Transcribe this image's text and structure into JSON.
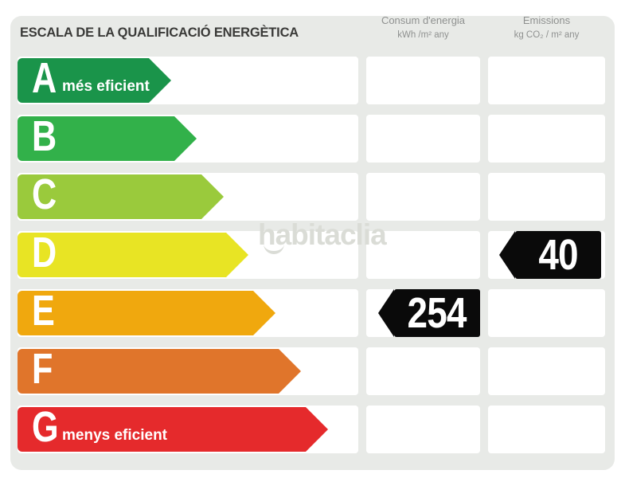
{
  "title": "ESCALA DE LA QUALIFICACIÓ ENERGÈTICA",
  "columns": {
    "consumption": {
      "title": "Consum d'energia",
      "unit": "kWh /m² any"
    },
    "emissions": {
      "title": "Emissions",
      "unit": "kg CO₂ / m² any"
    }
  },
  "scale": {
    "rows": [
      {
        "letter": "A",
        "label": "més eficient",
        "color": "#1a944a"
      },
      {
        "letter": "B",
        "label": "",
        "color": "#32b14a"
      },
      {
        "letter": "C",
        "label": "",
        "color": "#9aca3c"
      },
      {
        "letter": "D",
        "label": "",
        "color": "#e8e424"
      },
      {
        "letter": "E",
        "label": "",
        "color": "#f0a80e"
      },
      {
        "letter": "F",
        "label": "",
        "color": "#e0752b"
      },
      {
        "letter": "G",
        "label": "menys eficient",
        "color": "#e52a2c"
      }
    ]
  },
  "values": {
    "consumption": {
      "rating": "E",
      "value": "254"
    },
    "emissions": {
      "rating": "D",
      "value": "40"
    }
  },
  "watermark": "habitaclia",
  "colors": {
    "panel": "#e8eae7",
    "cell": "#ffffff",
    "tag": "#0a0a0a",
    "title_text": "#3a3a38",
    "header_text": "#8f9190"
  },
  "chart_data": {
    "type": "bar",
    "title": "ESCALA DE LA QUALIFICACIÓ ENERGÈTICA",
    "categories": [
      "A",
      "B",
      "C",
      "D",
      "E",
      "F",
      "G"
    ],
    "category_notes": {
      "A": "més eficient",
      "G": "menys eficient"
    },
    "series": [
      {
        "name": "Consum d'energia (kWh /m² any)",
        "values": [
          null,
          null,
          null,
          null,
          254,
          null,
          null
        ]
      },
      {
        "name": "Emissions (kg CO₂ / m² any)",
        "values": [
          null,
          null,
          null,
          40,
          null,
          null,
          null
        ]
      }
    ],
    "bar_colors": [
      "#1a944a",
      "#32b14a",
      "#9aca3c",
      "#e8e424",
      "#f0a80e",
      "#e0752b",
      "#e52a2c"
    ],
    "xlabel": "",
    "ylabel": "",
    "legend_position": "column-headers",
    "grid": false
  }
}
